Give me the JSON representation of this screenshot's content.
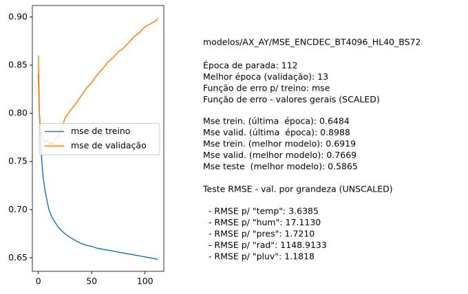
{
  "chart_data": {
    "type": "line",
    "x": [
      0,
      1,
      2,
      3,
      4,
      5,
      6,
      8,
      10,
      12,
      13,
      15,
      18,
      21,
      25,
      30,
      35,
      40,
      45,
      50,
      55,
      60,
      65,
      70,
      75,
      80,
      85,
      90,
      95,
      100,
      105,
      110,
      112
    ],
    "series": [
      {
        "name": "mse de treino",
        "color": "#1f77b4",
        "values": [
          0.841,
          0.8,
          0.775,
          0.755,
          0.74,
          0.73,
          0.722,
          0.71,
          0.7,
          0.694,
          0.6919,
          0.688,
          0.683,
          0.679,
          0.675,
          0.671,
          0.668,
          0.665,
          0.663,
          0.662,
          0.66,
          0.659,
          0.658,
          0.657,
          0.656,
          0.655,
          0.654,
          0.653,
          0.652,
          0.651,
          0.65,
          0.649,
          0.6484
        ]
      },
      {
        "name": "mse de validação",
        "color": "#ff7f0e",
        "values": [
          0.86,
          0.8,
          0.785,
          0.778,
          0.775,
          0.772,
          0.77,
          0.772,
          0.768,
          0.77,
          0.7669,
          0.772,
          0.775,
          0.782,
          0.795,
          0.803,
          0.81,
          0.818,
          0.826,
          0.832,
          0.84,
          0.846,
          0.853,
          0.858,
          0.864,
          0.868,
          0.874,
          0.88,
          0.884,
          0.89,
          0.893,
          0.896,
          0.8988
        ]
      }
    ],
    "xlim": [
      -5.6,
      117.6
    ],
    "xticks": [
      0,
      50,
      100
    ],
    "ylim": [
      0.636,
      0.912
    ],
    "yticks": [
      0.65,
      {
        "value": 0.7,
        "label": "0.70"
      },
      0.75,
      {
        "value": 0.8,
        "label": "0.80"
      },
      0.85,
      {
        "value": 0.9,
        "label": "0.90"
      }
    ],
    "legend": "center left"
  },
  "text": {
    "blocks": [
      [
        "modelos/AX_AY/MSE_ENCDEC_BT4096_HL40_BS72"
      ],
      [
        "Época de parada: 112",
        "Melhor época (validação): 13",
        "Função de erro p/ treino: mse",
        "Função de erro - valores gerais (SCALED)"
      ],
      [
        "Mse trein. (última  época): 0.6484",
        "Mse valid. (última  época): 0.8988",
        "Mse trein. (melhor modelo): 0.6919",
        "Mse valid. (melhor modelo): 0.7669",
        "Mse teste  (melhor modelo): 0.5865"
      ],
      [
        "Teste RMSE - val. por grandeza (UNSCALED)"
      ],
      [
        "  - RMSE p/ \"temp\": 3.6385",
        "  - RMSE p/ \"hum\": 17.1130",
        "  - RMSE p/ \"pres\": 1.7210",
        "  - RMSE p/ \"rad\": 1148.9133",
        "  - RMSE p/ \"pluv\": 1.1818"
      ]
    ]
  }
}
